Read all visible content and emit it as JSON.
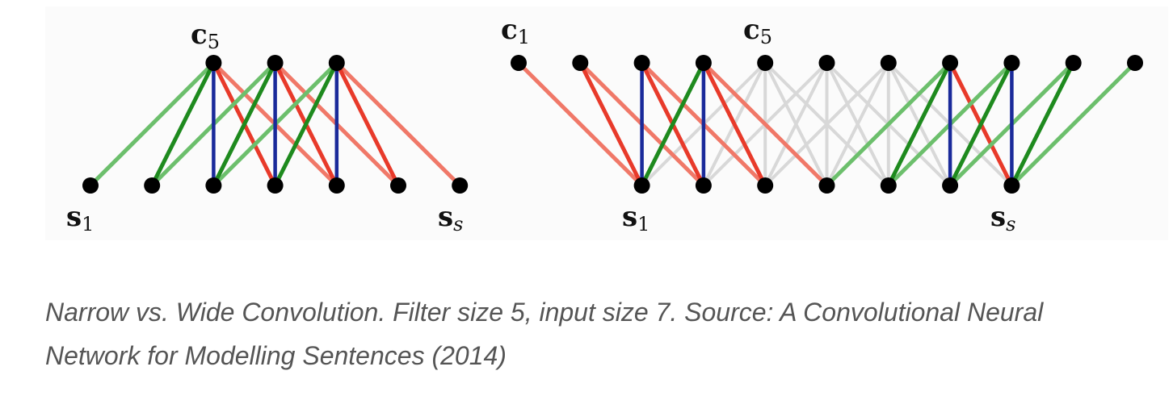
{
  "figure": {
    "narrow": {
      "inputs": 7,
      "filter_size": 5,
      "label_top": {
        "main": "c",
        "sub": "5"
      },
      "label_bottom_left": {
        "main": "s",
        "sub": "1"
      },
      "label_bottom_right": {
        "main": "s",
        "sub": "s"
      }
    },
    "wide": {
      "inputs": 7,
      "filter_size": 5,
      "label_top_left": {
        "main": "c",
        "sub": "1"
      },
      "label_top_mid": {
        "main": "c",
        "sub": "5"
      },
      "label_bottom_left": {
        "main": "s",
        "sub": "1"
      },
      "label_bottom_right": {
        "main": "s",
        "sub": "s"
      }
    },
    "colors": {
      "weight_minus2": "#6cbf6c",
      "weight_minus1": "#1e8a1e",
      "weight_0": "#1a2a9a",
      "weight_plus1": "#e83a2a",
      "weight_plus2": "#f07868",
      "inactive": "#d8d8d8",
      "node": "#000000"
    }
  },
  "caption": "Narrow vs. Wide Convolution. Filter size 5, input size 7. Source: A Convolutional Neural Network for Modelling Sentences (2014)"
}
